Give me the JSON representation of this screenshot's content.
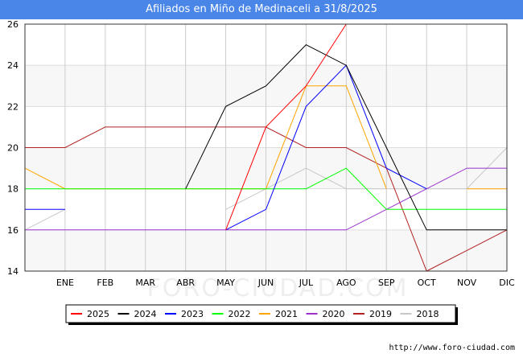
{
  "header": {
    "title": "Afiliados en Miño de Medinaceli a 31/8/2025"
  },
  "watermark": "FORO-CIUDAD.COM",
  "source": "http://www.foro-ciudad.com",
  "chart_data": {
    "type": "line",
    "title": "Afiliados en Miño de Medinaceli a 31/8/2025",
    "xlabel": "",
    "ylabel": "",
    "categories": [
      "",
      "ENE",
      "FEB",
      "MAR",
      "ABR",
      "MAY",
      "JUN",
      "JUL",
      "AGO",
      "SEP",
      "OCT",
      "NOV",
      "DIC"
    ],
    "ylim": [
      14,
      26
    ],
    "yticks": [
      14,
      16,
      18,
      20,
      22,
      24,
      26
    ],
    "grid": true,
    "legend": "bottom",
    "series": [
      {
        "name": "2025",
        "color": "#ff0000",
        "values": [
          null,
          null,
          null,
          null,
          null,
          16,
          21,
          23,
          26,
          null,
          null,
          null,
          null
        ]
      },
      {
        "name": "2024",
        "color": "#000000",
        "values": [
          null,
          null,
          null,
          null,
          18,
          22,
          23,
          25,
          24,
          20,
          16,
          16,
          16
        ]
      },
      {
        "name": "2023",
        "color": "#0000ff",
        "values": [
          17,
          17,
          null,
          null,
          null,
          16,
          17,
          22,
          24,
          19,
          18,
          null,
          null
        ]
      },
      {
        "name": "2022",
        "color": "#00ff00",
        "values": [
          18,
          18,
          18,
          18,
          18,
          18,
          18,
          18,
          19,
          17,
          17,
          17,
          17
        ]
      },
      {
        "name": "2021",
        "color": "#ffa500",
        "values": [
          19,
          18,
          18,
          18,
          18,
          18,
          18,
          23,
          23,
          18,
          null,
          18,
          18
        ]
      },
      {
        "name": "2020",
        "color": "#9933cc",
        "values": [
          16,
          16,
          16,
          16,
          16,
          16,
          16,
          16,
          16,
          17,
          18,
          19,
          19
        ]
      },
      {
        "name": "2019",
        "color": "#b22222",
        "values": [
          20,
          20,
          21,
          21,
          21,
          21,
          21,
          20,
          20,
          19,
          14,
          15,
          16
        ]
      },
      {
        "name": "2018",
        "color": "#c8c8c8",
        "values": [
          16,
          17,
          null,
          null,
          null,
          17,
          18,
          19,
          18,
          18,
          18,
          18,
          20
        ]
      }
    ]
  }
}
